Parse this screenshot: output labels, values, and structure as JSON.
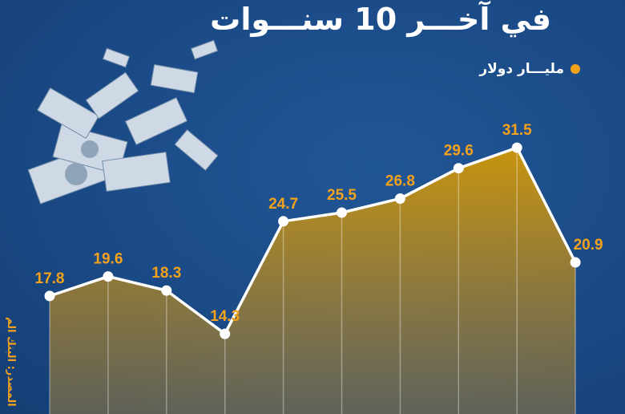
{
  "header": {
    "title": "في آخـــر 10 سنـــوات",
    "legend_label": "مليـــار دولار"
  },
  "source": "المصدر: البنك الم",
  "colors": {
    "background": "#1a4a86",
    "accent": "#f4a21c",
    "line": "#ffffff"
  },
  "decoration": {
    "image": "flying-dollar-bills"
  },
  "chart_data": {
    "type": "area",
    "title": "في آخـــر 10 سنـــوات",
    "series": [
      {
        "name": "مليـــار دولار",
        "values": [
          17.8,
          19.6,
          18.3,
          14.3,
          24.7,
          25.5,
          26.8,
          29.6,
          31.5,
          20.9
        ]
      }
    ],
    "data_labels": [
      "17.8",
      "19.6",
      "18.3",
      "14.3",
      "24.7",
      "25.5",
      "26.8",
      "29.6",
      "31.5",
      "20.9"
    ],
    "grid": false,
    "legend_placement": "top-right"
  }
}
